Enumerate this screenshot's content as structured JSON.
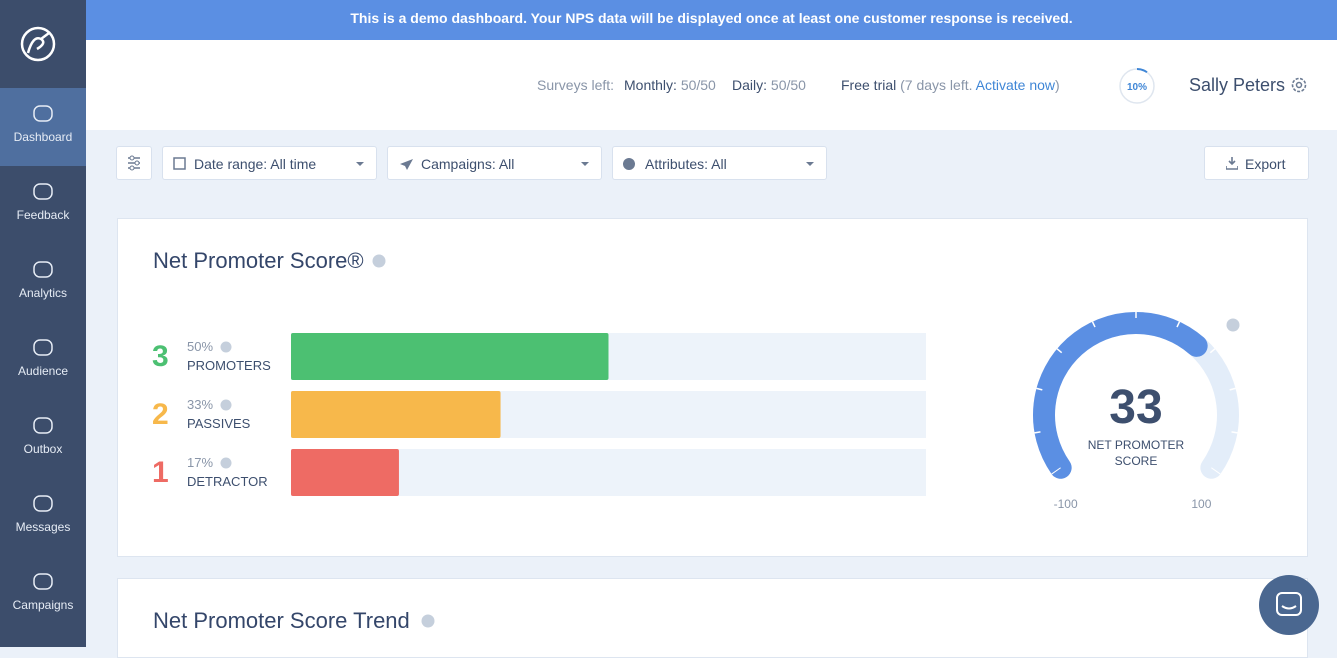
{
  "banner": "This is a demo dashboard. Your NPS data will be displayed once at least one customer response is received.",
  "sidebar": {
    "items": [
      "Dashboard",
      "Feedback",
      "Analytics",
      "Audience",
      "Outbox",
      "Messages",
      "Campaigns"
    ]
  },
  "header": {
    "surveys_left": "Surveys left:",
    "monthly_label": "Monthly:",
    "monthly": "50/50",
    "daily_label": "Daily:",
    "daily": "50/50",
    "trial": "Free trial",
    "trial_note": "(7 days left.",
    "activate": "Activate now",
    "trial_close": ")",
    "progress": {
      "value": 10,
      "label": "10%"
    },
    "user": "Sally Peters"
  },
  "filters": {
    "date": "Date range: All time",
    "campaigns": "Campaigns: All",
    "attributes": "Attributes: All",
    "export": "Export"
  },
  "chart_data": [
    {
      "type": "bar",
      "title": "Net Promoter Score®",
      "categories": [
        "PROMOTERS",
        "PASSIVES",
        "DETRACTOR"
      ],
      "counts": [
        3,
        2,
        1
      ],
      "values": [
        50,
        33,
        17
      ],
      "value_labels": [
        "50%",
        "33%",
        "17%"
      ],
      "colors": [
        "#4cc072",
        "#f7b84b",
        "#ee6b64"
      ],
      "xlim": [
        0,
        100
      ]
    },
    {
      "type": "gauge",
      "value": 33,
      "label": "NET PROMOTER SCORE",
      "ylim": [
        -100,
        100
      ],
      "yticks": [
        -100,
        100
      ],
      "color": "#5b8fe3"
    }
  ],
  "trend_title": "Net Promoter Score Trend"
}
